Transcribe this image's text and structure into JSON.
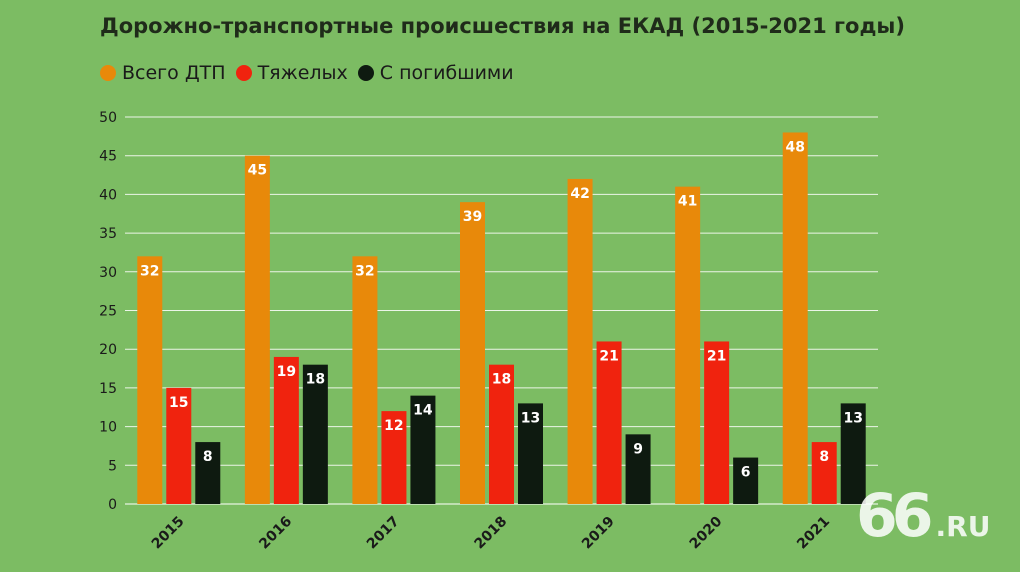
{
  "chart_data": {
    "type": "bar",
    "title": "Дорожно-транспортные происшествия на ЕКАД (2015-2021 годы)",
    "xlabel": "",
    "ylabel": "",
    "categories": [
      "2015",
      "2016",
      "2017",
      "2018",
      "2019",
      "2020",
      "2021"
    ],
    "series": [
      {
        "name": "Всего ДТП",
        "color": "#e8890a",
        "values": [
          32,
          45,
          32,
          39,
          42,
          41,
          48
        ]
      },
      {
        "name": "Тяжелых",
        "color": "#f0230e",
        "values": [
          15,
          19,
          12,
          18,
          21,
          21,
          8
        ]
      },
      {
        "name": "С погибшими",
        "color": "#0e1a10",
        "values": [
          8,
          18,
          14,
          13,
          9,
          6,
          13
        ]
      }
    ],
    "ylim": [
      0,
      50
    ],
    "yticks": [
      0,
      5,
      10,
      15,
      20,
      25,
      30,
      35,
      40,
      45,
      50
    ],
    "grid": true,
    "legend_position": "top-left",
    "data_labels": true
  },
  "logo": {
    "number": "66",
    "domain": ".RU"
  }
}
